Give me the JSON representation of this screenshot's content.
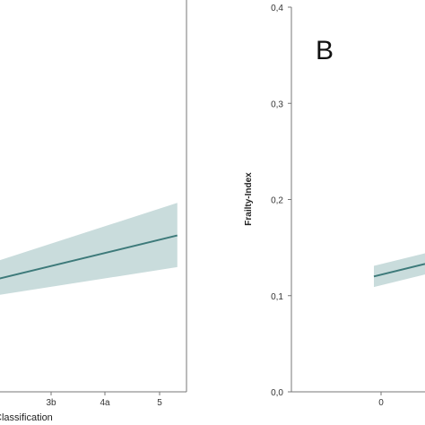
{
  "colors": {
    "line": "#3d7a7a",
    "band": "#c9dcdc",
    "frame": "#777777"
  },
  "chart_data": [
    {
      "type": "line",
      "panel": "left",
      "xlabel": "Classification",
      "x_tick_labels": [
        "3b",
        "4a",
        "5"
      ],
      "series": [
        {
          "x": [
            0,
            5.3
          ],
          "y": [
            0.118,
            0.163
          ],
          "ci_low": [
            0.101,
            0.13
          ],
          "ci_high": [
            0.137,
            0.197
          ]
        }
      ]
    },
    {
      "type": "line",
      "panel": "right",
      "panel_label": "B",
      "ylabel": "Frailty-Index",
      "ylim": [
        0.0,
        0.4
      ],
      "y_tick_labels": [
        "0,0",
        "0,1",
        "0,2",
        "0,3",
        "0,4"
      ],
      "x_tick_labels": [
        "0"
      ],
      "series": [
        {
          "x": [
            0,
            1
          ],
          "y": [
            0.12,
            0.133
          ],
          "ci_low": [
            0.109,
            0.122
          ],
          "ci_high": [
            0.131,
            0.144
          ]
        }
      ]
    }
  ]
}
